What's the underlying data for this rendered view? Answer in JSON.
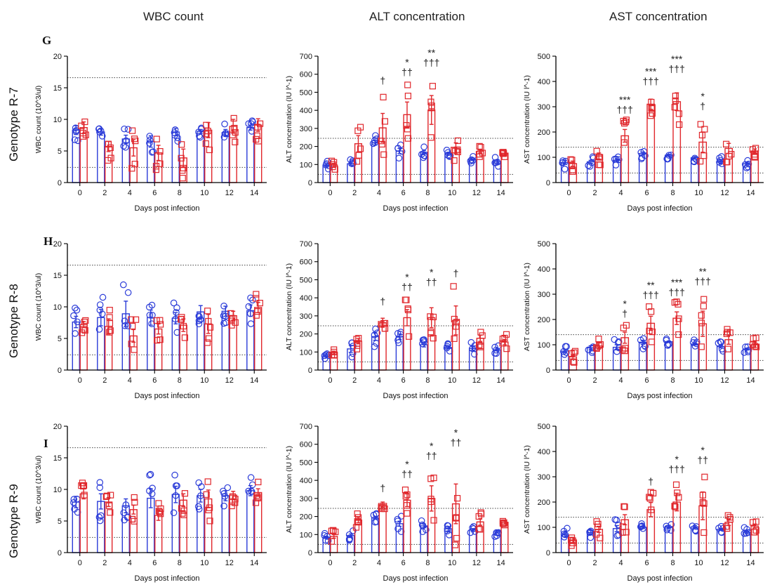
{
  "column_titles": [
    "WBC count",
    "ALT concentration",
    "AST concentration"
  ],
  "rows": [
    {
      "letter": "G",
      "genotype": "Genotype R-7"
    },
    {
      "letter": "H",
      "genotype": "Genotype R-8"
    },
    {
      "letter": "I",
      "genotype": "Genotype R-9"
    }
  ],
  "colors": {
    "blue": "#2a3bd8",
    "red": "#e0262b",
    "axis": "#000000"
  },
  "chart_data": [
    {
      "type": "bar",
      "ylabel": "WBC count (10^3/ul)",
      "xlabel": "Days post infection",
      "categories": [
        "0",
        "2",
        "4",
        "6",
        "8",
        "10",
        "12",
        "14"
      ],
      "ylim": [
        0,
        20
      ],
      "yticks": [
        0,
        5,
        10,
        15,
        20
      ],
      "reference_lines": [
        16.6,
        2.4
      ],
      "series": [
        {
          "color": "blue",
          "values": [
            8.3,
            8.0,
            6.9,
            6.5,
            8.0,
            8.1,
            7.9,
            8.7
          ],
          "errors": [
            0.7,
            0.5,
            0.6,
            0.9,
            0.6,
            0.3,
            0.5,
            0.4
          ]
        },
        {
          "color": "red",
          "values": [
            8.7,
            5.7,
            5.5,
            4.7,
            3.9,
            8.3,
            8.9,
            9.1
          ],
          "errors": [
            0.9,
            0.8,
            1.3,
            1.2,
            1.4,
            1.2,
            1.1,
            1.0
          ]
        }
      ],
      "annotations": []
    },
    {
      "type": "bar",
      "ylabel": "ALT concentration (IU l^-1)",
      "xlabel": "Days post infection",
      "categories": [
        "0",
        "2",
        "4",
        "6",
        "8",
        "10",
        "12",
        "14"
      ],
      "ylim": [
        0,
        700
      ],
      "yticks": [
        0,
        100,
        200,
        300,
        400,
        500,
        600,
        700
      ],
      "reference_lines": [
        245,
        45
      ],
      "series": [
        {
          "color": "blue",
          "values": [
            96,
            104,
            221,
            175,
            168,
            160,
            127,
            116
          ],
          "errors": [
            7,
            8,
            13,
            14,
            9,
            8,
            5,
            8
          ]
        },
        {
          "color": "red",
          "values": [
            97,
            215,
            303,
            376,
            402,
            190,
            174,
            163
          ],
          "errors": [
            9,
            45,
            80,
            70,
            80,
            30,
            10,
            12
          ]
        }
      ],
      "annotations": [
        {
          "day": "4",
          "lines": [
            "†"
          ]
        },
        {
          "day": "6",
          "lines": [
            "*",
            "††"
          ]
        },
        {
          "day": "8",
          "lines": [
            "**",
            "†††"
          ]
        }
      ]
    },
    {
      "type": "bar",
      "ylabel": "AST concentration (IU l^-1)",
      "xlabel": "Days post infection",
      "categories": [
        "0",
        "2",
        "4",
        "6",
        "8",
        "10",
        "12",
        "14"
      ],
      "ylim": [
        0,
        500
      ],
      "yticks": [
        0,
        100,
        200,
        300,
        400,
        500
      ],
      "reference_lines": [
        140,
        38
      ],
      "series": [
        {
          "color": "blue",
          "values": [
            80,
            82,
            88,
            115,
            108,
            98,
            82,
            75
          ],
          "errors": [
            8,
            6,
            5,
            6,
            4,
            5,
            8,
            6
          ]
        },
        {
          "color": "red",
          "values": [
            75,
            105,
            185,
            310,
            320,
            160,
            135,
            125
          ],
          "errors": [
            10,
            12,
            25,
            20,
            35,
            40,
            20,
            8
          ]
        }
      ],
      "annotations": [
        {
          "day": "4",
          "lines": [
            "***",
            "†††"
          ]
        },
        {
          "day": "6",
          "lines": [
            "***",
            "†††"
          ]
        },
        {
          "day": "8",
          "lines": [
            "***",
            "†††"
          ]
        },
        {
          "day": "10",
          "lines": [
            "*",
            "†"
          ]
        }
      ]
    },
    {
      "type": "bar",
      "ylabel": "WBC count (10^3/ul)",
      "xlabel": "Days post infection",
      "categories": [
        "0",
        "2",
        "4",
        "6",
        "8",
        "10",
        "12",
        "14"
      ],
      "ylim": [
        0,
        20
      ],
      "yticks": [
        0,
        5,
        10,
        15,
        20
      ],
      "reference_lines": [
        16.6,
        2.4
      ],
      "series": [
        {
          "color": "blue",
          "values": [
            7.6,
            8.3,
            8.9,
            8.3,
            8.2,
            9.2,
            9.3,
            9.4
          ],
          "errors": [
            0.9,
            1.3,
            2.0,
            1.2,
            0.9,
            1.0,
            0.8,
            0.9
          ]
        },
        {
          "color": "red",
          "values": [
            7.2,
            6.9,
            5.4,
            6.5,
            7.1,
            7.3,
            8.6,
            9.9
          ],
          "errors": [
            0.5,
            1.2,
            1.0,
            0.8,
            1.0,
            1.5,
            0.7,
            0.8
          ]
        }
      ],
      "annotations": []
    },
    {
      "type": "bar",
      "ylabel": "ALT concentration (IU l^-1)",
      "xlabel": "Days post infection",
      "categories": [
        "0",
        "2",
        "4",
        "6",
        "8",
        "10",
        "12",
        "14"
      ],
      "ylim": [
        0,
        700
      ],
      "yticks": [
        0,
        100,
        200,
        300,
        400,
        500,
        600,
        700
      ],
      "reference_lines": [
        245,
        45
      ],
      "series": [
        {
          "color": "blue",
          "values": [
            85,
            117,
            185,
            185,
            140,
            125,
            120,
            112
          ],
          "errors": [
            9,
            19,
            20,
            15,
            12,
            6,
            10,
            6
          ]
        },
        {
          "color": "red",
          "values": [
            97,
            160,
            262,
            290,
            290,
            275,
            176,
            155
          ],
          "errors": [
            8,
            15,
            25,
            45,
            55,
            80,
            17,
            15
          ]
        }
      ],
      "annotations": [
        {
          "day": "4",
          "lines": [
            "†"
          ]
        },
        {
          "day": "6",
          "lines": [
            "*",
            "††"
          ]
        },
        {
          "day": "8",
          "lines": [
            "*",
            "††"
          ]
        },
        {
          "day": "10",
          "lines": [
            "†"
          ]
        }
      ]
    },
    {
      "type": "bar",
      "ylabel": "AST concentration (IU l^-1)",
      "xlabel": "Days post infection",
      "categories": [
        "0",
        "2",
        "4",
        "6",
        "8",
        "10",
        "12",
        "14"
      ],
      "ylim": [
        0,
        500
      ],
      "yticks": [
        0,
        100,
        200,
        300,
        400,
        500
      ],
      "reference_lines": [
        140,
        38
      ],
      "series": [
        {
          "color": "blue",
          "values": [
            75,
            88,
            90,
            110,
            112,
            103,
            93,
            83
          ],
          "errors": [
            7,
            8,
            10,
            8,
            3,
            4,
            5,
            4
          ]
        },
        {
          "color": "red",
          "values": [
            52,
            95,
            128,
            185,
            205,
            183,
            120,
            100
          ],
          "errors": [
            8,
            12,
            22,
            28,
            25,
            50,
            18,
            10
          ]
        }
      ],
      "annotations": [
        {
          "day": "4",
          "lines": [
            "*",
            "†"
          ]
        },
        {
          "day": "6",
          "lines": [
            "**",
            "†††"
          ]
        },
        {
          "day": "8",
          "lines": [
            "***",
            "†††"
          ]
        },
        {
          "day": "10",
          "lines": [
            "**",
            "†††"
          ]
        }
      ]
    },
    {
      "type": "bar",
      "ylabel": "WBC count (10^3/ul)",
      "xlabel": "Days post infection",
      "categories": [
        "0",
        "2",
        "4",
        "6",
        "8",
        "10",
        "12",
        "14"
      ],
      "ylim": [
        0,
        20
      ],
      "yticks": [
        0,
        5,
        10,
        15,
        20
      ],
      "reference_lines": [
        16.6,
        2.4
      ],
      "series": [
        {
          "color": "blue",
          "values": [
            8.0,
            8.1,
            7.4,
            8.6,
            9.2,
            9.0,
            9.0,
            9.8
          ],
          "errors": [
            0.9,
            1.2,
            1.1,
            1.5,
            1.3,
            1.0,
            0.8,
            0.8
          ]
        },
        {
          "color": "red",
          "values": [
            9.3,
            8.0,
            6.8,
            5.9,
            8.3,
            8.5,
            9.1,
            9.5
          ],
          "errors": [
            0.8,
            0.7,
            0.7,
            0.8,
            1.0,
            1.4,
            0.6,
            0.6
          ]
        }
      ],
      "annotations": []
    },
    {
      "type": "bar",
      "ylabel": "ALT concentration (IU l^-1)",
      "xlabel": "Days post infection",
      "categories": [
        "0",
        "2",
        "4",
        "6",
        "8",
        "10",
        "12",
        "14"
      ],
      "ylim": [
        0,
        700
      ],
      "yticks": [
        0,
        100,
        200,
        300,
        400,
        500,
        600,
        700
      ],
      "reference_lines": [
        245,
        45
      ],
      "series": [
        {
          "color": "blue",
          "values": [
            85,
            95,
            192,
            160,
            148,
            132,
            125,
            115
          ],
          "errors": [
            5,
            8,
            6,
            14,
            10,
            12,
            8,
            7
          ]
        },
        {
          "color": "red",
          "values": [
            90,
            180,
            265,
            290,
            300,
            270,
            170,
            168
          ],
          "errors": [
            10,
            15,
            15,
            35,
            70,
            110,
            18,
            10
          ]
        }
      ],
      "annotations": [
        {
          "day": "4",
          "lines": [
            "†"
          ]
        },
        {
          "day": "6",
          "lines": [
            "*",
            "††"
          ]
        },
        {
          "day": "8",
          "lines": [
            "*",
            "††"
          ]
        },
        {
          "day": "10",
          "lines": [
            "*",
            "††"
          ]
        }
      ]
    },
    {
      "type": "bar",
      "ylabel": "AST concentration (IU l^-1)",
      "xlabel": "Days post infection",
      "categories": [
        "0",
        "2",
        "4",
        "6",
        "8",
        "10",
        "12",
        "14"
      ],
      "ylim": [
        0,
        500
      ],
      "yticks": [
        0,
        100,
        200,
        300,
        400,
        500
      ],
      "reference_lines": [
        140,
        38
      ],
      "series": [
        {
          "color": "blue",
          "values": [
            70,
            80,
            95,
            100,
            103,
            102,
            92,
            80
          ],
          "errors": [
            8,
            8,
            12,
            5,
            5,
            5,
            4,
            5
          ]
        },
        {
          "color": "red",
          "values": [
            50,
            92,
            130,
            170,
            200,
            185,
            120,
            105
          ],
          "errors": [
            10,
            12,
            20,
            28,
            35,
            55,
            12,
            8
          ]
        }
      ],
      "annotations": [
        {
          "day": "6",
          "lines": [
            "†"
          ]
        },
        {
          "day": "8",
          "lines": [
            "*",
            "†††"
          ]
        },
        {
          "day": "10",
          "lines": [
            "*",
            "††"
          ]
        }
      ]
    }
  ]
}
